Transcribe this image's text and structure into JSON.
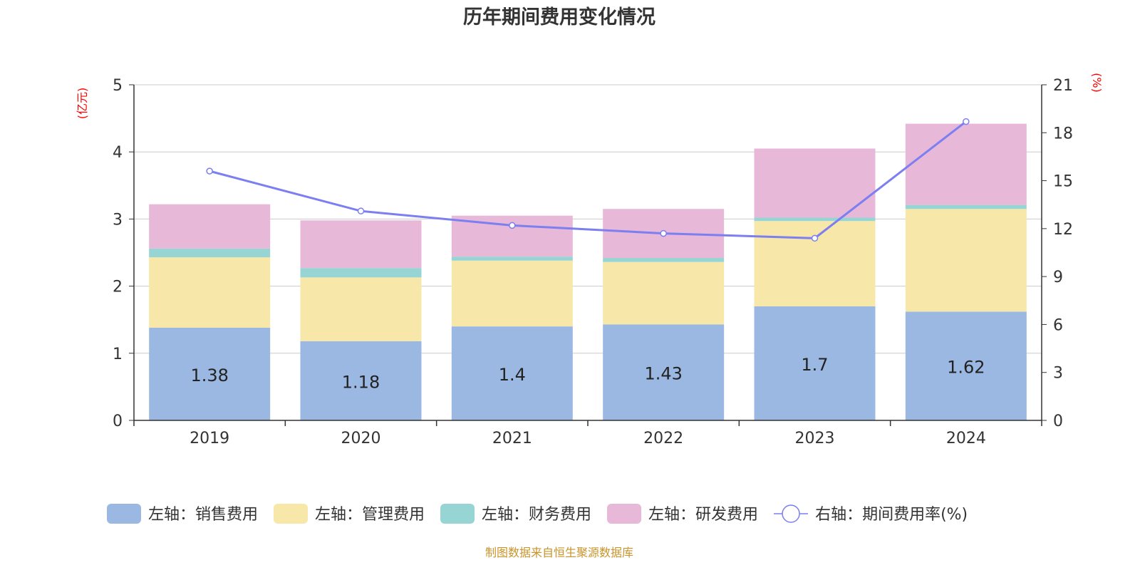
{
  "chart_data": {
    "type": "bar",
    "stacked": true,
    "title": "历年期间费用变化情况",
    "left_axis_unit": "(亿元)",
    "right_axis_unit": "(%)",
    "categories": [
      "2019",
      "2020",
      "2021",
      "2022",
      "2023",
      "2024"
    ],
    "left_ylim": [
      0,
      5
    ],
    "left_ticks": [
      "0",
      "1",
      "2",
      "3",
      "4",
      "5"
    ],
    "right_ylim": [
      0,
      21
    ],
    "right_ticks": [
      "0",
      "3",
      "6",
      "9",
      "12",
      "15",
      "18",
      "21"
    ],
    "series": [
      {
        "name": "左轴：销售费用",
        "type": "bar",
        "color": "#9bb8e2",
        "values": [
          1.38,
          1.18,
          1.4,
          1.43,
          1.7,
          1.62
        ],
        "labels": [
          "1.38",
          "1.18",
          "1.4",
          "1.43",
          "1.7",
          "1.62"
        ]
      },
      {
        "name": "左轴：管理费用",
        "type": "bar",
        "color": "#f7e7a8",
        "values": [
          1.05,
          0.95,
          0.98,
          0.93,
          1.27,
          1.53
        ]
      },
      {
        "name": "左轴：财务费用",
        "type": "bar",
        "color": "#97d4d4",
        "values": [
          0.13,
          0.14,
          0.06,
          0.06,
          0.05,
          0.06
        ]
      },
      {
        "name": "左轴：研发费用",
        "type": "bar",
        "color": "#e8b8d8",
        "values": [
          0.66,
          0.71,
          0.61,
          0.73,
          1.03,
          1.21
        ]
      },
      {
        "name": "右轴：期间费用率(%)",
        "type": "line",
        "color": "#7b7ff0",
        "values": [
          15.6,
          13.1,
          12.2,
          11.7,
          11.4,
          18.7
        ]
      }
    ],
    "grid": true,
    "legend_position": "bottom"
  },
  "source": "制图数据来自恒生聚源数据库"
}
